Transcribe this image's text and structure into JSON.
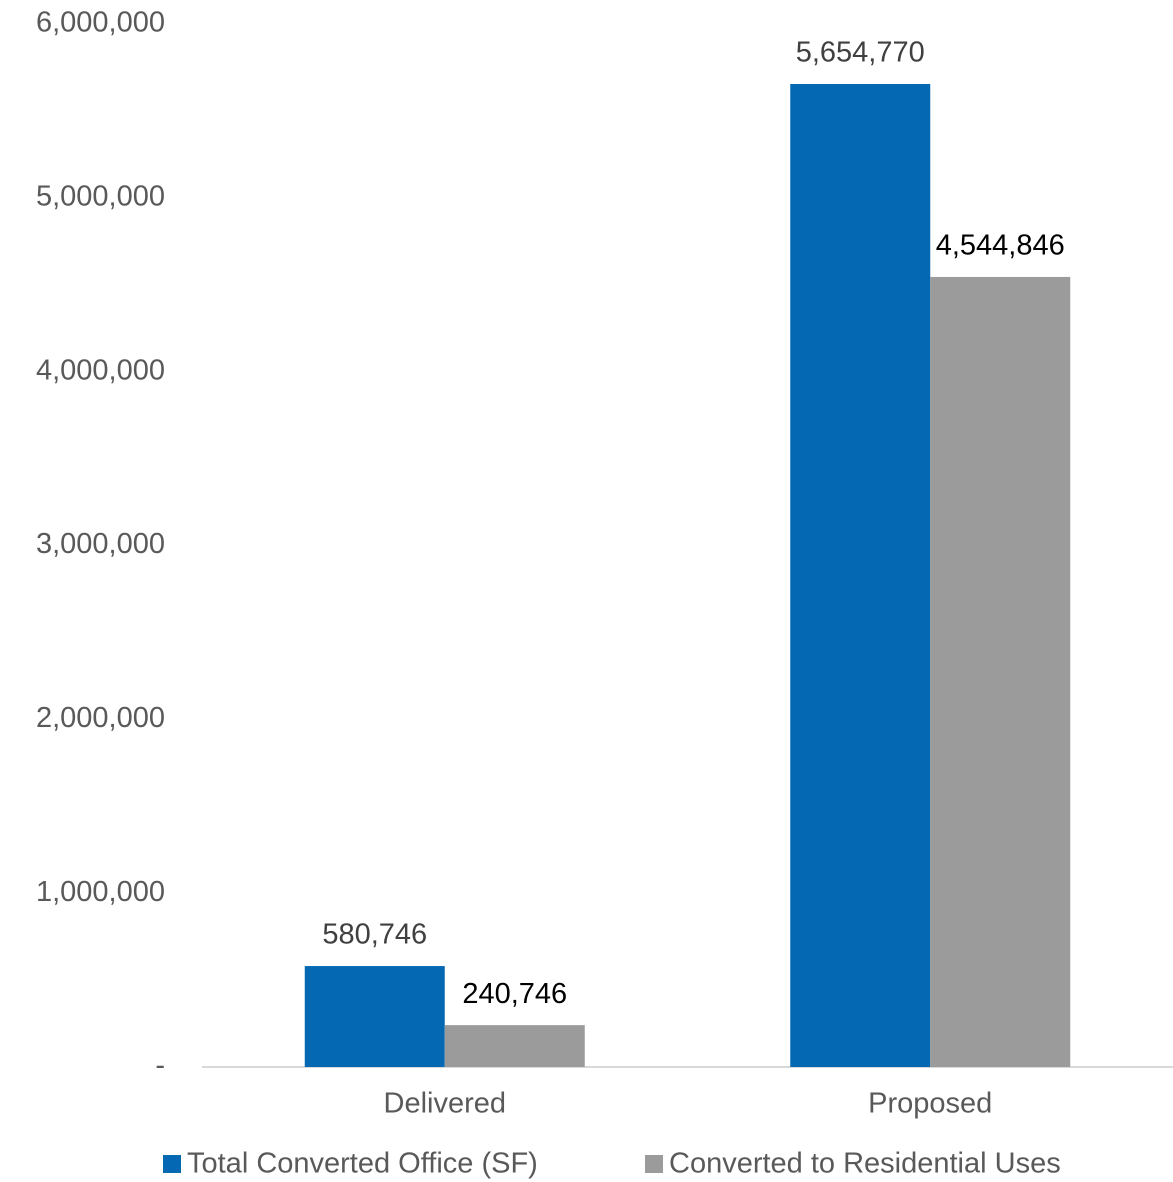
{
  "chart_data": {
    "type": "bar",
    "categories": [
      "Delivered",
      "Proposed"
    ],
    "series": [
      {
        "name": "Total Converted Office (SF)",
        "color": "#0568b3",
        "values": [
          580746,
          5654770
        ],
        "value_labels": [
          "580,746",
          "5,654,770"
        ]
      },
      {
        "name": "Converted to Residential Uses",
        "color": "#9b9b9b",
        "values": [
          240746,
          4544846
        ],
        "value_labels": [
          "240,746",
          "4,544,846"
        ]
      }
    ],
    "ylim": [
      0,
      6000000
    ],
    "yticks": [
      {
        "value": 0,
        "label": "-"
      },
      {
        "value": 1000000,
        "label": "1,000,000"
      },
      {
        "value": 2000000,
        "label": "2,000,000"
      },
      {
        "value": 3000000,
        "label": "3,000,000"
      },
      {
        "value": 4000000,
        "label": "4,000,000"
      },
      {
        "value": 5000000,
        "label": "5,000,000"
      },
      {
        "value": 6000000,
        "label": "6,000,000"
      }
    ],
    "grid": false,
    "legend": "bottom"
  }
}
